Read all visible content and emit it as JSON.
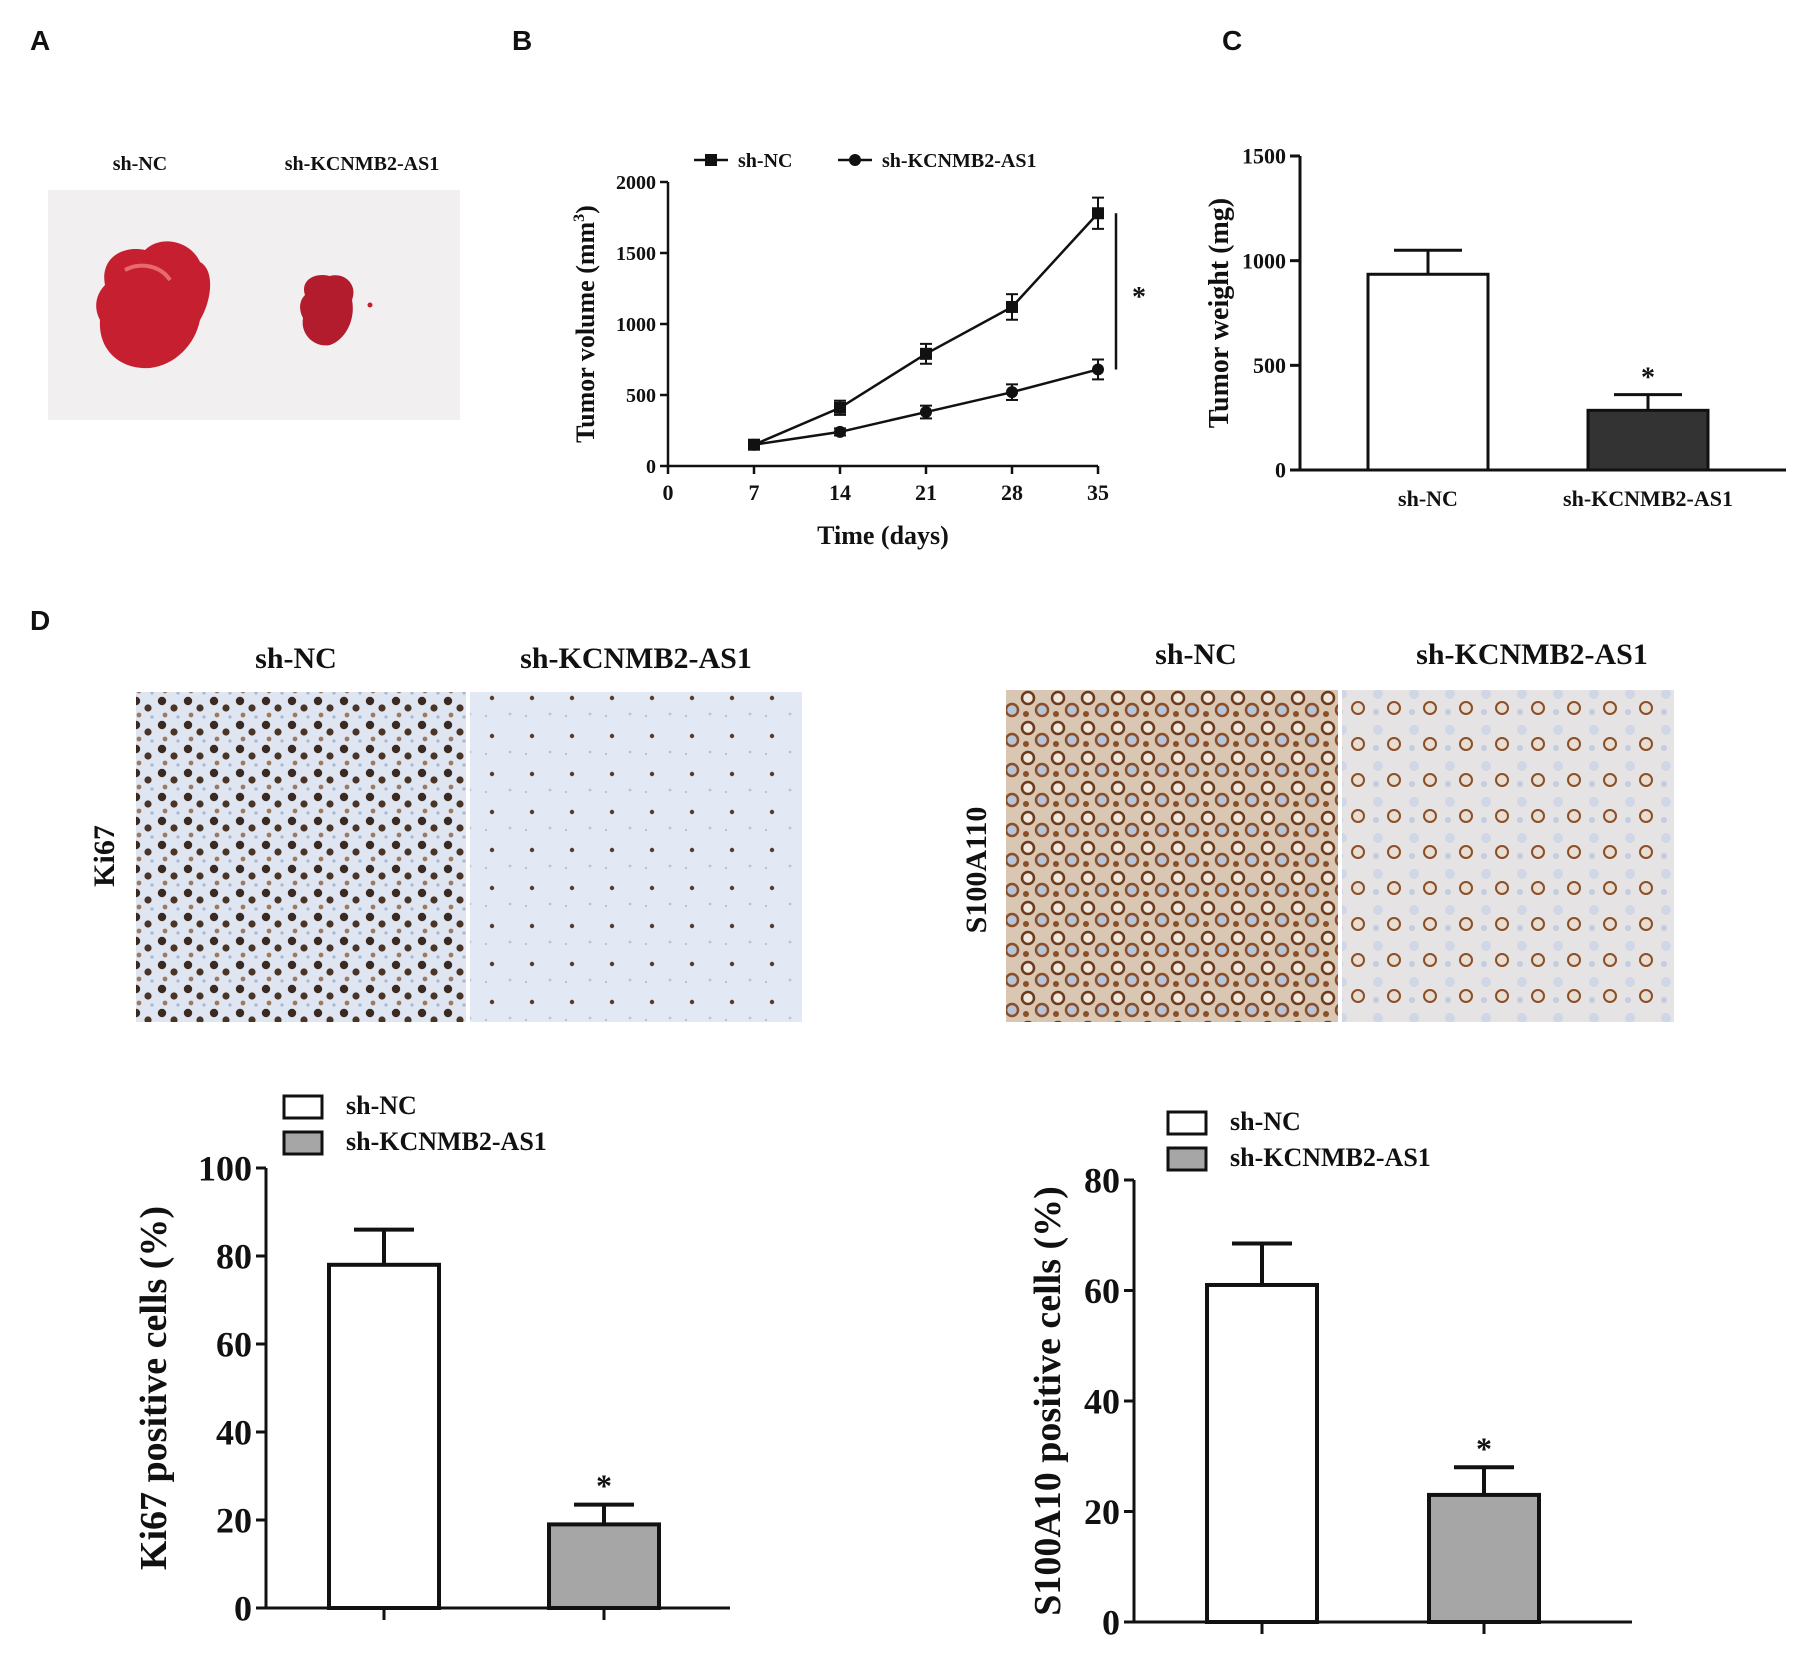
{
  "panels": {
    "A": {
      "letter": "A",
      "photo_labels": [
        "sh-NC",
        "sh-KCNMB2-AS1"
      ]
    },
    "B": {
      "letter": "B"
    },
    "C": {
      "letter": "C"
    },
    "D": {
      "letter": "D",
      "ihc_left": {
        "row_label": "Ki67",
        "col_labels": [
          "sh-NC",
          "sh-KCNMB2-AS1"
        ]
      },
      "ihc_right": {
        "row_label": "S100A110",
        "col_labels": [
          "sh-NC",
          "sh-KCNMB2-AS1"
        ]
      }
    }
  },
  "colors": {
    "sh_nc_fill": "#ffffff",
    "c_sh_kcnmb2_fill": "#333333",
    "d_sh_kcnmb2_fill": "#a6a6a6",
    "tumor_red": "#c62030",
    "ki67_bg": "#dfe6f2",
    "ki67_stain": "#3a2a22",
    "s100_brown": "#8a4f26",
    "s100_bg": "#e4e3e6"
  },
  "chart_data": [
    {
      "id": "B",
      "type": "line",
      "xlabel": "Time (days)",
      "ylabel": "Tumor  volume  (mm",
      "ylabel_sup": "3",
      "ylabel_close": ")",
      "xlim": [
        0,
        35
      ],
      "ylim": [
        0,
        2000
      ],
      "xticks": [
        "0",
        "7",
        "14",
        "21",
        "28",
        "35"
      ],
      "yticks": [
        "0",
        "500",
        "1000",
        "1500",
        "2000"
      ],
      "x": [
        7,
        14,
        21,
        28,
        35
      ],
      "series": [
        {
          "name": "sh-NC",
          "marker": "square",
          "values": [
            150,
            410,
            790,
            1120,
            1780
          ],
          "errors": [
            25,
            50,
            70,
            90,
            110
          ]
        },
        {
          "name": "sh-KCNMB2-AS1",
          "marker": "circle",
          "values": [
            150,
            240,
            380,
            520,
            680
          ],
          "errors": [
            20,
            25,
            45,
            55,
            70
          ]
        }
      ],
      "annotation": "*"
    },
    {
      "id": "C",
      "type": "bar",
      "ylabel": "Tumor weight (mg)",
      "ylim": [
        0,
        1500
      ],
      "yticks": [
        "0",
        "500",
        "1000",
        "1500"
      ],
      "categories": [
        "sh-NC",
        "sh-KCNMB2-AS1"
      ],
      "values": [
        935,
        285
      ],
      "errors": [
        115,
        75
      ],
      "annotations": [
        "",
        "*"
      ]
    },
    {
      "id": "D-left",
      "type": "bar",
      "ylabel": "Ki67  positive cells  (%)",
      "ylim": [
        0,
        100
      ],
      "yticks": [
        "0",
        "20",
        "40",
        "60",
        "80",
        "100"
      ],
      "categories": [
        "sh-NC",
        "sh-KCNMB2-AS1"
      ],
      "values": [
        78,
        19
      ],
      "errors": [
        8,
        4.5
      ],
      "legend": [
        "sh-NC",
        "sh-KCNMB2-AS1"
      ],
      "annotations": [
        "",
        "*"
      ]
    },
    {
      "id": "D-right",
      "type": "bar",
      "ylabel": "S100A10  positive cells  (%)",
      "ylim": [
        0,
        80
      ],
      "yticks": [
        "0",
        "20",
        "40",
        "60",
        "80"
      ],
      "categories": [
        "sh-NC",
        "sh-KCNMB2-AS1"
      ],
      "values": [
        61,
        23
      ],
      "errors": [
        7.5,
        5
      ],
      "legend": [
        "sh-NC",
        "sh-KCNMB2-AS1"
      ],
      "annotations": [
        "",
        "*"
      ]
    }
  ]
}
